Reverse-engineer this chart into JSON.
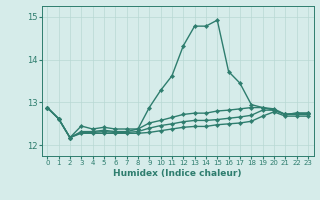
{
  "xlabel": "Humidex (Indice chaleur)",
  "background_color": "#d6ecea",
  "line_color": "#2e7d6e",
  "grid_color": "#b8d8d4",
  "xlim": [
    -0.5,
    23.5
  ],
  "ylim": [
    11.75,
    15.25
  ],
  "yticks": [
    12,
    13,
    14,
    15
  ],
  "xticks": [
    0,
    1,
    2,
    3,
    4,
    5,
    6,
    7,
    8,
    9,
    10,
    11,
    12,
    13,
    14,
    15,
    16,
    17,
    18,
    19,
    20,
    21,
    22,
    23
  ],
  "series": [
    [
      12.88,
      12.62,
      12.18,
      12.45,
      12.38,
      12.42,
      12.38,
      12.38,
      12.38,
      12.88,
      13.28,
      13.62,
      14.32,
      14.78,
      14.78,
      14.92,
      13.72,
      13.45,
      12.95,
      12.88,
      12.82,
      12.72,
      12.75,
      12.75
    ],
    [
      12.88,
      12.62,
      12.18,
      12.32,
      12.32,
      12.35,
      12.32,
      12.32,
      12.38,
      12.52,
      12.58,
      12.65,
      12.72,
      12.75,
      12.75,
      12.8,
      12.82,
      12.85,
      12.88,
      12.88,
      12.85,
      12.72,
      12.75,
      12.75
    ],
    [
      12.88,
      12.62,
      12.18,
      12.3,
      12.3,
      12.32,
      12.3,
      12.3,
      12.32,
      12.4,
      12.46,
      12.5,
      12.55,
      12.58,
      12.58,
      12.6,
      12.63,
      12.66,
      12.7,
      12.82,
      12.82,
      12.72,
      12.72,
      12.72
    ],
    [
      12.88,
      12.62,
      12.18,
      12.28,
      12.28,
      12.28,
      12.28,
      12.28,
      12.28,
      12.3,
      12.34,
      12.38,
      12.42,
      12.44,
      12.44,
      12.48,
      12.5,
      12.52,
      12.56,
      12.68,
      12.78,
      12.68,
      12.68,
      12.68
    ]
  ]
}
